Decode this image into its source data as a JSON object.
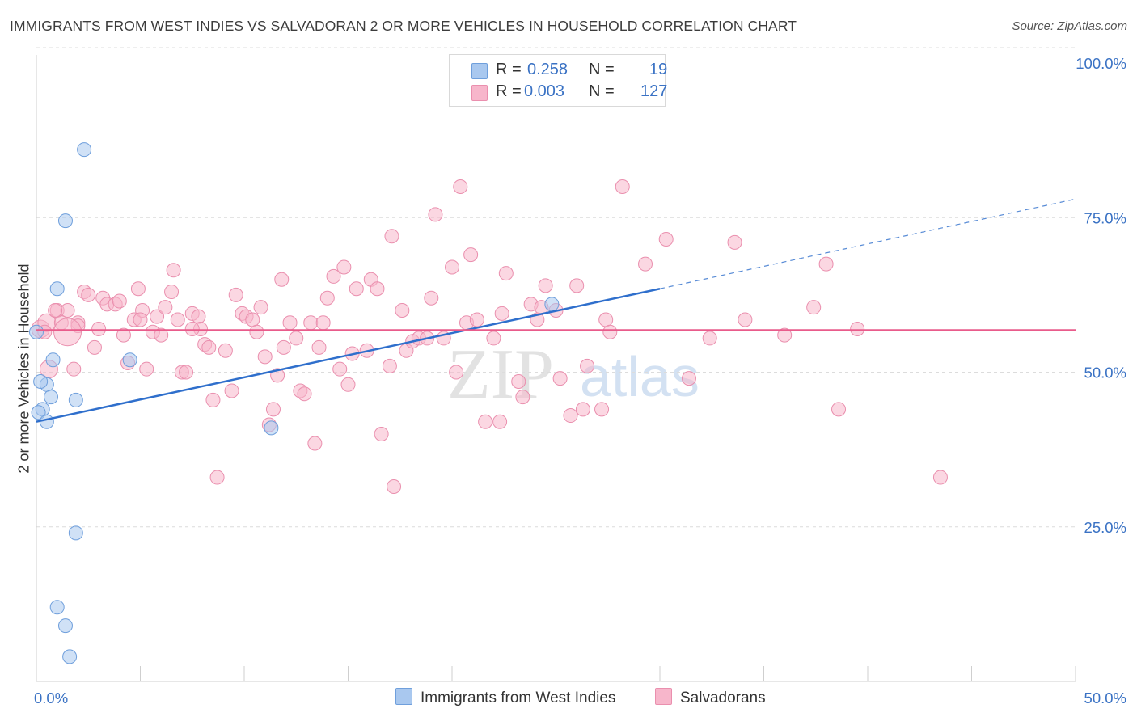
{
  "title": "IMMIGRANTS FROM WEST INDIES VS SALVADORAN 2 OR MORE VEHICLES IN HOUSEHOLD CORRELATION CHART",
  "source": "Source: ZipAtlas.com",
  "watermark": {
    "zip": "ZIP",
    "atlas": "atlas"
  },
  "legend_top": [
    {
      "r_label": "R =",
      "r_value": "0.258",
      "n_label": "N =",
      "n_value": "19",
      "color": "#a9c8ef"
    },
    {
      "r_label": "R =",
      "r_value": "0.003",
      "n_label": "N =",
      "n_value": "127",
      "color": "#f7b6cb"
    }
  ],
  "legend_bottom": [
    {
      "label": "Immigrants from West Indies",
      "color": "#a9c8ef"
    },
    {
      "label": "Salvadorans",
      "color": "#f7b6cb"
    }
  ],
  "chart_data": {
    "type": "scatter",
    "title": "IMMIGRANTS FROM WEST INDIES VS SALVADORAN 2 OR MORE VEHICLES IN HOUSEHOLD CORRELATION CHART",
    "xlabel": "",
    "ylabel": "2 or more Vehicles in Household",
    "xlim": [
      0,
      50
    ],
    "ylim": [
      0,
      100
    ],
    "x_tick_labels": [
      "0.0%",
      "50.0%"
    ],
    "y_tick_labels": [
      "25.0%",
      "50.0%",
      "75.0%",
      "100.0%"
    ],
    "y_ticks": [
      25,
      50,
      75,
      100
    ],
    "grid": true,
    "series": [
      {
        "name": "Immigrants from West Indies",
        "color": "#a9c8ef",
        "stroke": "#6f9fdc",
        "trend_color": "#2f6fcc",
        "trend": {
          "x0": 0,
          "y0": 42.0,
          "x1": 30,
          "y1": 63.5,
          "dash_to_x": 50,
          "dash_to_y": 78.0
        },
        "points": [
          [
            2.3,
            86.0
          ],
          [
            1.4,
            74.5
          ],
          [
            1.0,
            63.5
          ],
          [
            0.8,
            52.0
          ],
          [
            0.5,
            48.0
          ],
          [
            0.2,
            48.5
          ],
          [
            0.7,
            46.0
          ],
          [
            1.9,
            45.5
          ],
          [
            0.3,
            44.0
          ],
          [
            0.1,
            43.5
          ],
          [
            0.5,
            42.0
          ],
          [
            4.5,
            52.0
          ],
          [
            11.3,
            41.0
          ],
          [
            24.8,
            61.0
          ],
          [
            1.9,
            24.0
          ],
          [
            1.0,
            12.0
          ],
          [
            1.4,
            9.0
          ],
          [
            1.6,
            4.0
          ],
          [
            0.0,
            56.5
          ]
        ]
      },
      {
        "name": "Salvadorans",
        "color": "#f7b6cb",
        "stroke": "#ea8fae",
        "trend_color": "#e95b8b",
        "trend": {
          "x0": 0,
          "y0": 56.8,
          "x1": 50,
          "y1": 56.8
        },
        "points": [
          [
            0.2,
            57.0
          ],
          [
            0.5,
            58.0
          ],
          [
            0.6,
            50.5
          ],
          [
            1.0,
            60.0
          ],
          [
            1.5,
            60.0
          ],
          [
            1.8,
            50.5
          ],
          [
            2.0,
            58.0
          ],
          [
            2.3,
            63.0
          ],
          [
            2.5,
            62.5
          ],
          [
            2.8,
            54.0
          ],
          [
            3.2,
            62.0
          ],
          [
            3.4,
            61.0
          ],
          [
            3.8,
            61.0
          ],
          [
            4.0,
            61.5
          ],
          [
            4.2,
            56.0
          ],
          [
            4.4,
            51.5
          ],
          [
            4.7,
            58.5
          ],
          [
            4.9,
            63.5
          ],
          [
            5.1,
            60.0
          ],
          [
            5.3,
            50.5
          ],
          [
            5.6,
            56.5
          ],
          [
            5.8,
            59.0
          ],
          [
            6.0,
            56.0
          ],
          [
            6.2,
            60.5
          ],
          [
            6.5,
            63.0
          ],
          [
            6.6,
            66.5
          ],
          [
            6.8,
            58.5
          ],
          [
            7.0,
            50.0
          ],
          [
            7.2,
            50.0
          ],
          [
            7.5,
            59.5
          ],
          [
            7.8,
            59.0
          ],
          [
            7.9,
            57.0
          ],
          [
            8.1,
            54.5
          ],
          [
            8.3,
            54.0
          ],
          [
            8.5,
            45.5
          ],
          [
            8.7,
            33.0
          ],
          [
            9.1,
            53.5
          ],
          [
            9.4,
            47.0
          ],
          [
            9.6,
            62.5
          ],
          [
            9.9,
            59.5
          ],
          [
            10.1,
            59.0
          ],
          [
            10.4,
            58.5
          ],
          [
            10.6,
            56.5
          ],
          [
            10.8,
            60.5
          ],
          [
            11.0,
            52.5
          ],
          [
            11.2,
            41.5
          ],
          [
            11.4,
            44.0
          ],
          [
            11.6,
            49.5
          ],
          [
            11.8,
            65.0
          ],
          [
            11.9,
            54.0
          ],
          [
            12.2,
            58.0
          ],
          [
            12.5,
            55.5
          ],
          [
            12.7,
            47.0
          ],
          [
            12.9,
            46.5
          ],
          [
            13.2,
            58.0
          ],
          [
            13.4,
            38.5
          ],
          [
            13.6,
            54.0
          ],
          [
            13.8,
            58.0
          ],
          [
            14.0,
            62.0
          ],
          [
            14.3,
            65.5
          ],
          [
            14.6,
            50.5
          ],
          [
            14.8,
            67.0
          ],
          [
            15.0,
            48.0
          ],
          [
            15.2,
            53.0
          ],
          [
            15.4,
            63.5
          ],
          [
            15.9,
            53.5
          ],
          [
            16.1,
            65.0
          ],
          [
            16.4,
            63.5
          ],
          [
            16.6,
            40.0
          ],
          [
            17.0,
            51.0
          ],
          [
            17.1,
            72.0
          ],
          [
            17.2,
            31.5
          ],
          [
            17.6,
            60.0
          ],
          [
            17.8,
            53.5
          ],
          [
            18.1,
            55.0
          ],
          [
            18.4,
            55.5
          ],
          [
            18.8,
            55.5
          ],
          [
            19.0,
            62.0
          ],
          [
            19.2,
            75.5
          ],
          [
            19.6,
            55.5
          ],
          [
            20.0,
            67.0
          ],
          [
            20.2,
            50.0
          ],
          [
            20.4,
            80.0
          ],
          [
            20.7,
            58.0
          ],
          [
            20.9,
            69.0
          ],
          [
            21.2,
            58.5
          ],
          [
            21.6,
            42.0
          ],
          [
            22.0,
            55.5
          ],
          [
            22.3,
            42.0
          ],
          [
            22.4,
            59.5
          ],
          [
            22.6,
            66.0
          ],
          [
            23.2,
            48.5
          ],
          [
            23.4,
            46.0
          ],
          [
            23.8,
            61.0
          ],
          [
            24.1,
            58.5
          ],
          [
            24.3,
            60.5
          ],
          [
            24.5,
            64.0
          ],
          [
            25.0,
            60.0
          ],
          [
            25.2,
            49.0
          ],
          [
            25.7,
            43.0
          ],
          [
            26.0,
            64.0
          ],
          [
            26.3,
            44.0
          ],
          [
            26.5,
            51.0
          ],
          [
            27.2,
            44.0
          ],
          [
            27.4,
            58.5
          ],
          [
            27.6,
            56.5
          ],
          [
            28.2,
            80.0
          ],
          [
            29.3,
            67.5
          ],
          [
            30.3,
            71.5
          ],
          [
            31.4,
            49.0
          ],
          [
            32.4,
            55.5
          ],
          [
            33.6,
            71.0
          ],
          [
            34.1,
            58.5
          ],
          [
            36.0,
            56.0
          ],
          [
            37.4,
            60.5
          ],
          [
            38.0,
            67.5
          ],
          [
            38.6,
            44.0
          ],
          [
            39.5,
            57.0
          ],
          [
            43.5,
            33.0
          ],
          [
            0.4,
            56.5
          ],
          [
            1.2,
            58.0
          ],
          [
            0.9,
            60.0
          ],
          [
            2.0,
            57.5
          ],
          [
            3.0,
            57.0
          ],
          [
            5.0,
            58.5
          ],
          [
            7.5,
            57.0
          ],
          [
            1.5,
            56.5
          ]
        ]
      }
    ],
    "annotations": []
  }
}
